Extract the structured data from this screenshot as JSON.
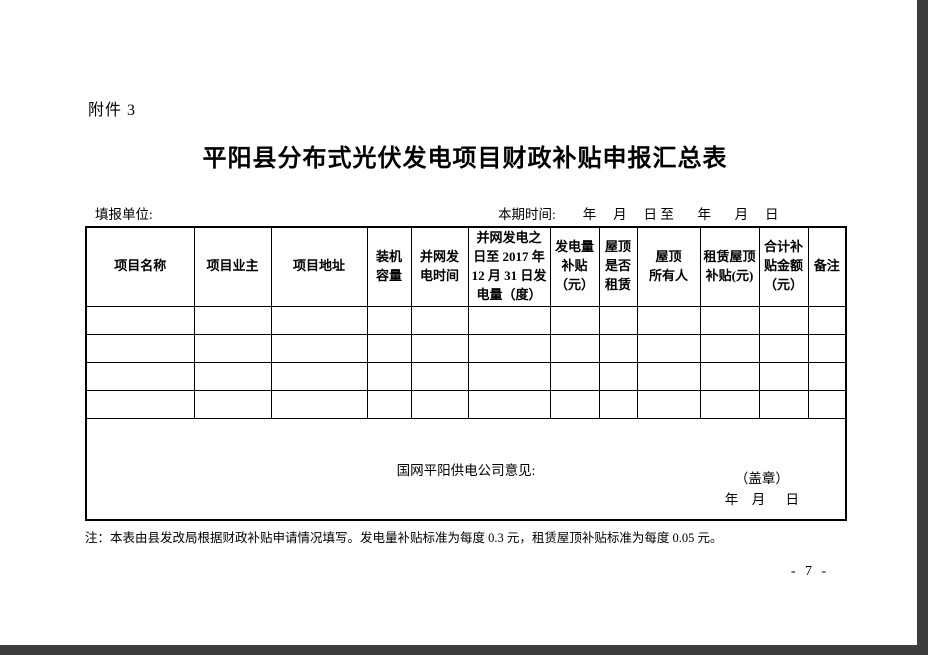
{
  "page": {
    "attachment_label": "附件 3",
    "title": "平阳县分布式光伏发电项目财政补贴申报汇总表",
    "form_unit_label": "填报单位:",
    "period_line": "本期时间:        年     月     日 至       年       月     日",
    "page_number": "- 7 -",
    "footnote": "注：本表由县发改局根据财政补贴申请情况填写。发电量补贴标准为每度 0.3 元，租赁屋顶补贴标准为每度 0.05 元。"
  },
  "table": {
    "headers": [
      "项目名称",
      "项目业主",
      "项目地址",
      "装机\n容量",
      "并网发\n电时间",
      "并网发电之\n日至 2017 年\n12 月 31 日发\n电量（度）",
      "发电量\n补贴\n（元）",
      "屋顶\n是否\n租赁",
      "屋顶\n所有人",
      "租赁屋顶\n补贴(元)",
      "合计补\n贴金额\n（元）",
      "备注"
    ],
    "empty_row_count": 4,
    "opinion": {
      "label": "国网平阳供电公司意见:",
      "seal_label": "（盖章）",
      "date_line": "年    月      日"
    }
  }
}
